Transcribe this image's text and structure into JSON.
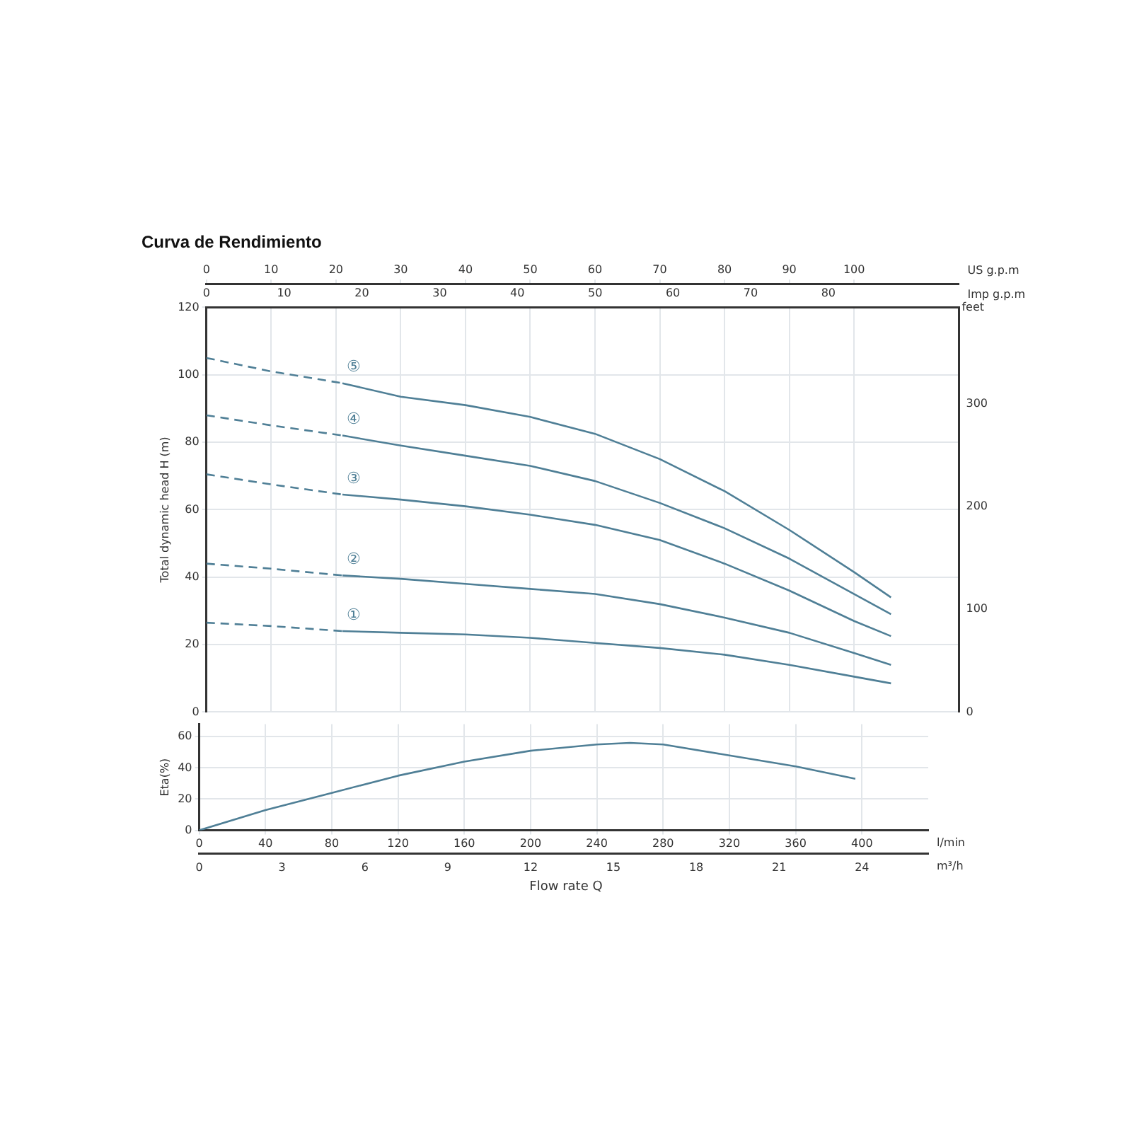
{
  "chart_data": [
    {
      "type": "line",
      "title": "Curva de Rendimiento",
      "ylabel": "Total dynamic head H (m)",
      "y2label": "feet",
      "xlabel": "US g.p.m",
      "x2label": "Imp g.p.m",
      "xlim": [
        0,
        116.2
      ],
      "xticks": [
        0,
        10,
        20,
        30,
        40,
        50,
        60,
        70,
        80,
        90,
        100
      ],
      "x2lim": [
        0,
        96.8
      ],
      "x2ticks": [
        0,
        10,
        20,
        30,
        40,
        50,
        60,
        70,
        80
      ],
      "ylim": [
        0,
        120
      ],
      "yticks": [
        0,
        20,
        40,
        60,
        80,
        100,
        120
      ],
      "y2lim": [
        0,
        393.7
      ],
      "y2ticks": [
        0,
        100,
        200,
        300
      ],
      "grid": true,
      "legend": false,
      "marker": "none",
      "series": [
        {
          "color": "#4f7f96",
          "line_style": "dashed",
          "x": [
            0,
            10,
            21
          ],
          "values": [
            105,
            101,
            97.5
          ]
        },
        {
          "name": "⑤",
          "color": "#4f7f96",
          "line_style": "solid",
          "x": [
            21,
            30,
            40,
            50,
            60,
            70,
            80,
            90,
            100,
            105.7
          ],
          "values": [
            97.5,
            93.5,
            91,
            87.5,
            82.5,
            75,
            65.5,
            54,
            41.5,
            34
          ]
        },
        {
          "color": "#4f7f96",
          "line_style": "dashed",
          "x": [
            0,
            10,
            21
          ],
          "values": [
            88,
            85,
            82
          ]
        },
        {
          "name": "④",
          "color": "#4f7f96",
          "line_style": "solid",
          "x": [
            21,
            30,
            40,
            50,
            60,
            70,
            80,
            90,
            100,
            105.7
          ],
          "values": [
            82,
            79,
            76,
            73,
            68.5,
            62,
            54.5,
            45.5,
            35,
            29
          ]
        },
        {
          "color": "#4f7f96",
          "line_style": "dashed",
          "x": [
            0,
            10,
            21
          ],
          "values": [
            70.5,
            67.5,
            64.5
          ]
        },
        {
          "name": "③",
          "color": "#4f7f96",
          "line_style": "solid",
          "x": [
            21,
            30,
            40,
            50,
            60,
            70,
            80,
            90,
            100,
            105.7
          ],
          "values": [
            64.5,
            63,
            61,
            58.5,
            55.5,
            51,
            44,
            36,
            27,
            22.5
          ]
        },
        {
          "color": "#4f7f96",
          "line_style": "dashed",
          "x": [
            0,
            10,
            21
          ],
          "values": [
            44,
            42.5,
            40.5
          ]
        },
        {
          "name": "②",
          "color": "#4f7f96",
          "line_style": "solid",
          "x": [
            21,
            30,
            40,
            50,
            60,
            70,
            80,
            90,
            100,
            105.7
          ],
          "values": [
            40.5,
            39.5,
            38,
            36.5,
            35,
            32,
            28,
            23.5,
            17.5,
            14
          ]
        },
        {
          "color": "#4f7f96",
          "line_style": "dashed",
          "x": [
            0,
            10,
            21
          ],
          "values": [
            26.5,
            25.5,
            24
          ]
        },
        {
          "name": "①",
          "color": "#4f7f96",
          "line_style": "solid",
          "x": [
            21,
            30,
            40,
            50,
            60,
            70,
            80,
            90,
            100,
            105.7
          ],
          "values": [
            24,
            23.5,
            23,
            22,
            20.5,
            19,
            17,
            14,
            10.5,
            8.5
          ]
        }
      ]
    },
    {
      "type": "line",
      "ylabel": "Eta(%)",
      "xlabel": "l/min",
      "x2label": "m³/h",
      "xlim": [
        0,
        440
      ],
      "xticks": [
        0,
        40,
        80,
        120,
        160,
        200,
        240,
        280,
        320,
        360,
        400
      ],
      "x2lim": [
        0,
        26.4
      ],
      "x2ticks": [
        0,
        3,
        6,
        9,
        12,
        15,
        18,
        21,
        24
      ],
      "ylim": [
        0,
        68
      ],
      "yticks": [
        0,
        20,
        40,
        60
      ],
      "grid": true,
      "legend": false,
      "marker": "none",
      "line_style": "solid",
      "series": [
        {
          "color": "#4f7f96",
          "x": [
            0,
            40,
            80,
            120,
            160,
            200,
            240,
            260,
            280,
            320,
            360,
            396
          ],
          "values": [
            0,
            13,
            24,
            35,
            44,
            51,
            55,
            56,
            55,
            48,
            41,
            33
          ]
        }
      ],
      "annotations": [
        "Flow rate  Q"
      ]
    }
  ]
}
